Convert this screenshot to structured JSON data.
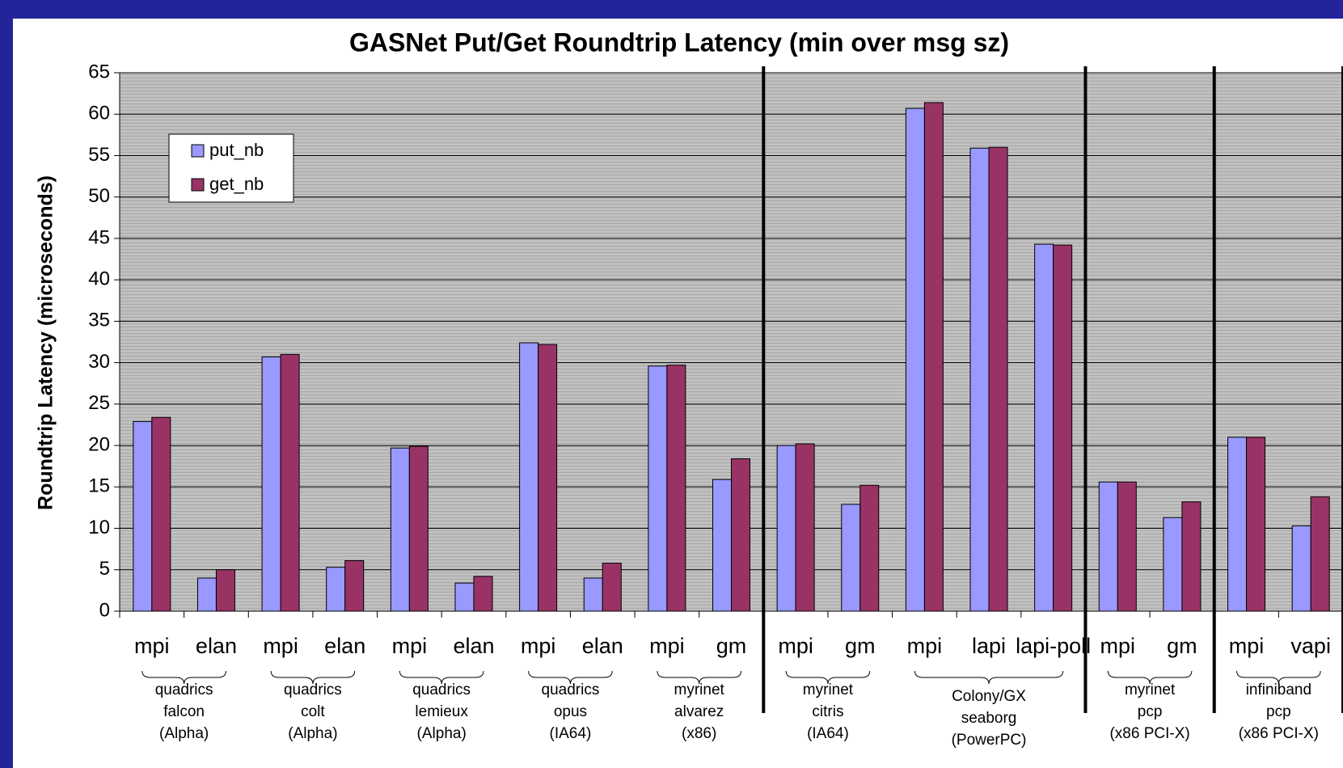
{
  "chart_data": {
    "type": "bar",
    "title": "GASNet Put/Get Roundtrip Latency (min over msg sz)",
    "y_label": "Roundtrip Latency (microseconds)",
    "categories": [
      "mpi",
      "elan",
      "mpi",
      "elan",
      "mpi",
      "elan",
      "mpi",
      "elan",
      "mpi",
      "gm",
      "mpi",
      "gm",
      "mpi",
      "lapi",
      "lapi-poll",
      "mpi",
      "gm",
      "mpi",
      "vapi"
    ],
    "groups": [
      [
        "quadrics",
        "falcon",
        "(Alpha)"
      ],
      [
        "quadrics",
        "colt",
        "(Alpha)"
      ],
      [
        "quadrics",
        "lemieux",
        "(Alpha)"
      ],
      [
        "quadrics",
        "opus",
        "(IA64)"
      ],
      [
        "myrinet",
        "alvarez",
        "(x86)"
      ],
      [
        "myrinet",
        "citris",
        "(IA64)"
      ],
      [
        "Colony/GX",
        "seaborg",
        "(PowerPC)"
      ],
      [
        "myrinet",
        "pcp",
        "(x86 PCI-X)"
      ],
      [
        "infiniband",
        "pcp",
        "(x86 PCI-X)"
      ]
    ],
    "series": [
      {
        "name": "put_nb",
        "color": "#9999ff",
        "values": [
          22.9,
          4.0,
          30.7,
          5.3,
          19.7,
          3.4,
          32.4,
          4.0,
          29.6,
          15.9,
          20.0,
          12.9,
          60.7,
          55.9,
          44.3,
          15.6,
          11.3,
          21.0,
          10.3
        ]
      },
      {
        "name": "get_nb",
        "color": "#993366",
        "values": [
          23.4,
          5.0,
          31.0,
          6.1,
          19.9,
          4.2,
          32.2,
          5.8,
          29.7,
          18.4,
          20.2,
          15.2,
          61.4,
          56.0,
          44.2,
          15.6,
          13.2,
          21.0,
          13.8
        ]
      }
    ],
    "ylim": [
      0,
      65
    ],
    "yticks": [
      0,
      5,
      10,
      15,
      20,
      25,
      30,
      35,
      40,
      45,
      50,
      55,
      60,
      65
    ],
    "grid": true,
    "legend": "upper left"
  }
}
